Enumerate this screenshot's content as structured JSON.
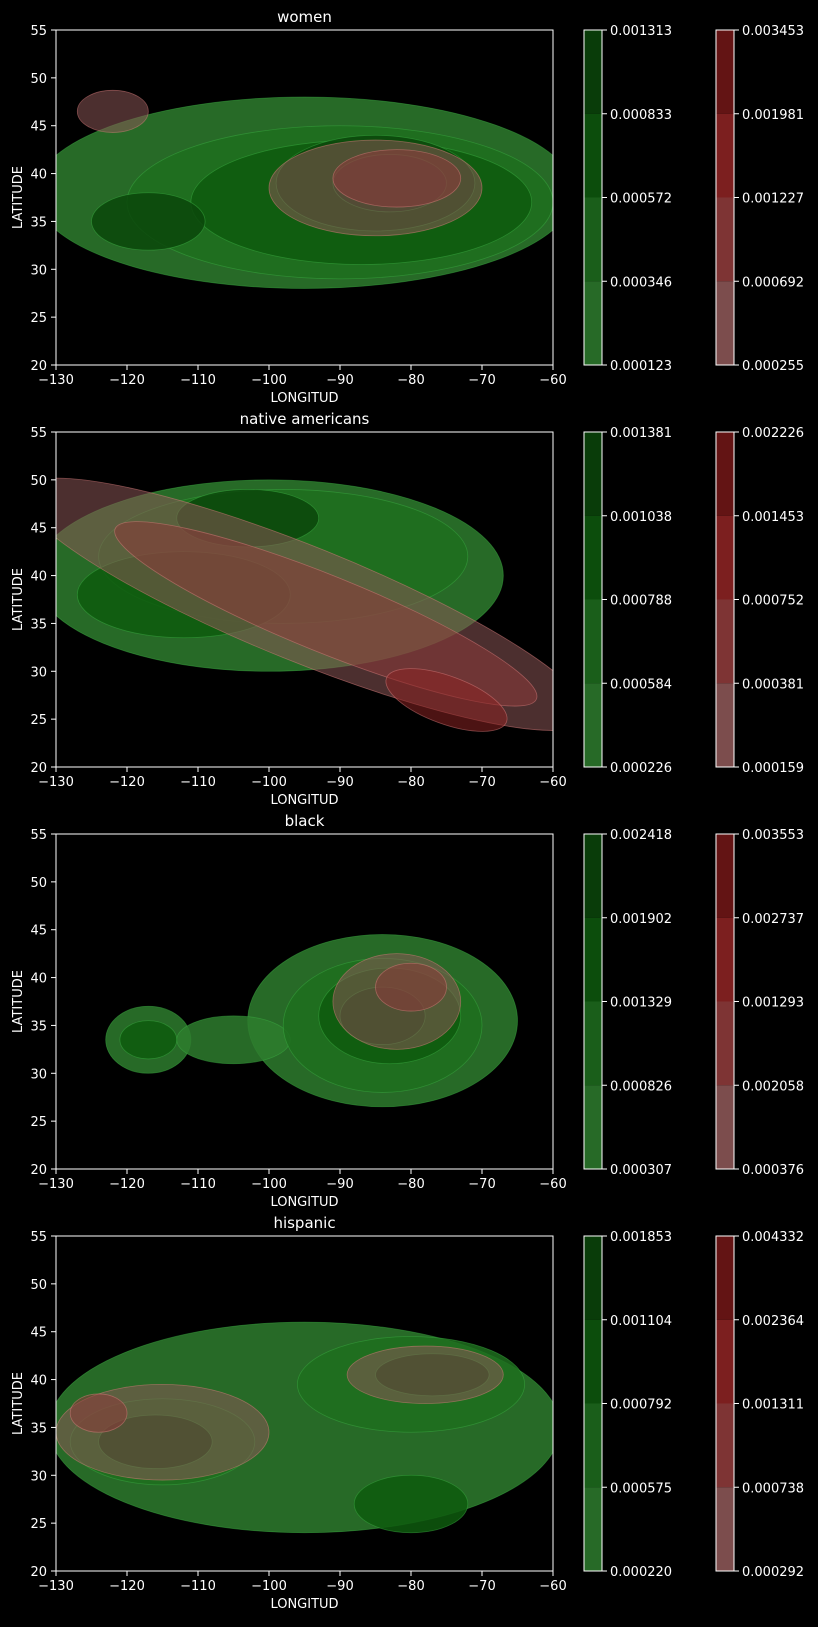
{
  "chart_data": [
    {
      "type": "contour",
      "title": "women",
      "xlabel": "LONGITUD",
      "ylabel": "LATITUDE",
      "xlim": [
        -130,
        -60
      ],
      "ylim": [
        20,
        55
      ],
      "xticks": [
        "−130",
        "−120",
        "−110",
        "−100",
        "−90",
        "−80",
        "−70",
        "−60"
      ],
      "yticks": [
        "20",
        "25",
        "30",
        "35",
        "40",
        "45",
        "50",
        "55"
      ],
      "green_colorbar": [
        "0.000123",
        "0.000346",
        "0.000572",
        "0.000833",
        "0.001313"
      ],
      "red_colorbar": [
        "0.000255",
        "0.000692",
        "0.001227",
        "0.001981",
        "0.003453"
      ],
      "green_blobs": [
        {
          "cx": -95,
          "cy": 38,
          "rx": 38,
          "ry": 10,
          "rot": 0,
          "level": 0
        },
        {
          "cx": -90,
          "cy": 37,
          "rx": 30,
          "ry": 8,
          "rot": 0,
          "level": 1
        },
        {
          "cx": -87,
          "cy": 37,
          "rx": 24,
          "ry": 6.5,
          "rot": 0,
          "level": 2
        },
        {
          "cx": -117,
          "cy": 35,
          "rx": 8,
          "ry": 3,
          "rot": 0,
          "level": 3
        },
        {
          "cx": -85,
          "cy": 39,
          "rx": 14,
          "ry": 5,
          "rot": 0,
          "level": 3
        },
        {
          "cx": -83,
          "cy": 39,
          "rx": 8,
          "ry": 3,
          "rot": 0,
          "level": 4
        }
      ],
      "red_blobs": [
        {
          "cx": -122,
          "cy": 46.5,
          "rx": 5,
          "ry": 2.2,
          "rot": 0,
          "level": 0
        },
        {
          "cx": -85,
          "cy": 38.5,
          "rx": 15,
          "ry": 5,
          "rot": 0,
          "level": 0
        },
        {
          "cx": -82,
          "cy": 39.5,
          "rx": 9,
          "ry": 3,
          "rot": 0,
          "level": 1
        }
      ]
    },
    {
      "type": "contour",
      "title": "native americans",
      "xlabel": "LONGITUD",
      "ylabel": "LATITUDE",
      "xlim": [
        -130,
        -60
      ],
      "ylim": [
        20,
        55
      ],
      "xticks": [
        "−130",
        "−120",
        "−110",
        "−100",
        "−90",
        "−80",
        "−70",
        "−60"
      ],
      "yticks": [
        "20",
        "25",
        "30",
        "35",
        "40",
        "45",
        "50",
        "55"
      ],
      "green_colorbar": [
        "0.000226",
        "0.000584",
        "0.000788",
        "0.001038",
        "0.001381"
      ],
      "red_colorbar": [
        "0.000159",
        "0.000381",
        "0.000752",
        "0.001453",
        "0.002226"
      ],
      "green_blobs": [
        {
          "cx": -100,
          "cy": 40,
          "rx": 33,
          "ry": 10,
          "rot": 0,
          "level": 0
        },
        {
          "cx": -98,
          "cy": 42,
          "rx": 26,
          "ry": 7,
          "rot": 0,
          "level": 1
        },
        {
          "cx": -112,
          "cy": 38,
          "rx": 15,
          "ry": 4.5,
          "rot": 0,
          "level": 2
        },
        {
          "cx": -103,
          "cy": 46,
          "rx": 10,
          "ry": 3,
          "rot": 0,
          "level": 3
        }
      ],
      "red_blobs": [
        {
          "cx": -95,
          "cy": 37,
          "rx": 43,
          "ry": 6,
          "rot": 22,
          "level": 0
        },
        {
          "cx": -92,
          "cy": 36,
          "rx": 32,
          "ry": 4,
          "rot": 22,
          "level": 1
        },
        {
          "cx": -75,
          "cy": 27,
          "rx": 9,
          "ry": 2.5,
          "rot": 20,
          "level": 2
        }
      ]
    },
    {
      "type": "contour",
      "title": "black",
      "xlabel": "LONGITUD",
      "ylabel": "LATITUDE",
      "xlim": [
        -130,
        -60
      ],
      "ylim": [
        20,
        55
      ],
      "xticks": [
        "−130",
        "−120",
        "−110",
        "−100",
        "−90",
        "−80",
        "−70",
        "−60"
      ],
      "yticks": [
        "20",
        "25",
        "30",
        "35",
        "40",
        "45",
        "50",
        "55"
      ],
      "green_colorbar": [
        "0.000307",
        "0.000826",
        "0.001329",
        "0.001902",
        "0.002418"
      ],
      "red_colorbar": [
        "0.000376",
        "0.002058",
        "0.001293",
        "0.002737",
        "0.003553"
      ],
      "green_blobs": [
        {
          "cx": -84,
          "cy": 35.5,
          "rx": 19,
          "ry": 9,
          "rot": 0,
          "level": 0
        },
        {
          "cx": -117,
          "cy": 33.5,
          "rx": 6,
          "ry": 3.5,
          "rot": 0,
          "level": 0
        },
        {
          "cx": -105,
          "cy": 33.5,
          "rx": 8,
          "ry": 2.5,
          "rot": 0,
          "level": 0
        },
        {
          "cx": -84,
          "cy": 35,
          "rx": 14,
          "ry": 7,
          "rot": 0,
          "level": 1
        },
        {
          "cx": -117,
          "cy": 33.5,
          "rx": 4,
          "ry": 2,
          "rot": 0,
          "level": 2
        },
        {
          "cx": -83,
          "cy": 36,
          "rx": 10,
          "ry": 5,
          "rot": 0,
          "level": 2
        },
        {
          "cx": -84,
          "cy": 36,
          "rx": 6,
          "ry": 3,
          "rot": 0,
          "level": 3
        }
      ],
      "red_blobs": [
        {
          "cx": -82,
          "cy": 37.5,
          "rx": 9,
          "ry": 5,
          "rot": 0,
          "level": 0
        },
        {
          "cx": -80,
          "cy": 39,
          "rx": 5,
          "ry": 2.5,
          "rot": 0,
          "level": 1
        }
      ]
    },
    {
      "type": "contour",
      "title": "hispanic",
      "xlabel": "LONGITUD",
      "ylabel": "LATITUDE",
      "xlim": [
        -130,
        -60
      ],
      "ylim": [
        20,
        55
      ],
      "xticks": [
        "−130",
        "−120",
        "−110",
        "−100",
        "−90",
        "−80",
        "−70",
        "−60"
      ],
      "yticks": [
        "20",
        "25",
        "30",
        "35",
        "40",
        "45",
        "50",
        "55"
      ],
      "green_colorbar": [
        "0.000220",
        "0.000575",
        "0.000792",
        "0.001104",
        "0.001853"
      ],
      "red_colorbar": [
        "0.000292",
        "0.000738",
        "0.001311",
        "0.002364",
        "0.004332"
      ],
      "green_blobs": [
        {
          "cx": -95,
          "cy": 35,
          "rx": 36,
          "ry": 11,
          "rot": 0,
          "level": 0
        },
        {
          "cx": -80,
          "cy": 39.5,
          "rx": 16,
          "ry": 5,
          "rot": 0,
          "level": 1
        },
        {
          "cx": -115,
          "cy": 33.5,
          "rx": 13,
          "ry": 4.5,
          "rot": 0,
          "level": 1
        },
        {
          "cx": -80,
          "cy": 27,
          "rx": 8,
          "ry": 3,
          "rot": 0,
          "level": 2
        },
        {
          "cx": -116,
          "cy": 33.5,
          "rx": 8,
          "ry": 2.8,
          "rot": 0,
          "level": 3
        },
        {
          "cx": -77,
          "cy": 40.5,
          "rx": 8,
          "ry": 2.2,
          "rot": 0,
          "level": 3
        }
      ],
      "red_blobs": [
        {
          "cx": -115,
          "cy": 34.5,
          "rx": 15,
          "ry": 5,
          "rot": 0,
          "level": 0
        },
        {
          "cx": -78,
          "cy": 40.5,
          "rx": 11,
          "ry": 3,
          "rot": 0,
          "level": 0
        },
        {
          "cx": -124,
          "cy": 36.5,
          "rx": 4,
          "ry": 2,
          "rot": 0,
          "level": 1
        }
      ]
    }
  ],
  "colors": {
    "green_levels": [
      "#2e7d2e",
      "#1f6e1f",
      "#0e5a0e",
      "#0a460a",
      "#103d10"
    ],
    "red_levels": [
      "#8a5555",
      "#8c3a3a",
      "#8a2222",
      "#6e1616",
      "#4a0f0f"
    ],
    "axis": "#ffffff",
    "background": "#000000"
  }
}
